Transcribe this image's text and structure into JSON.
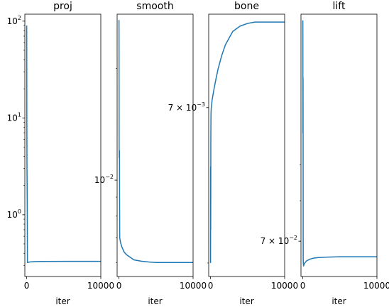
{
  "chart_data": [
    {
      "type": "line",
      "title": "proj",
      "xlabel": "iter",
      "yscale": "log",
      "xlim": [
        -250,
        10000
      ],
      "ylim": [
        0.23,
        118
      ],
      "xticks": [
        {
          "v": 0,
          "label": "0"
        },
        {
          "v": 10000,
          "label": "10000"
        }
      ],
      "yticks": [
        {
          "v": 1,
          "label": "10",
          "exp": "0"
        },
        {
          "v": 10,
          "label": "10",
          "exp": "1"
        },
        {
          "v": 100,
          "label": "10",
          "exp": "2"
        }
      ],
      "color": "#1f77b4",
      "series": [
        {
          "x": [
            0,
            5,
            10,
            20,
            40,
            60,
            80,
            100,
            200,
            400,
            1000,
            2000,
            5000,
            10000
          ],
          "y": [
            90,
            85,
            40,
            10,
            3,
            2.0,
            1.0,
            0.32,
            0.322,
            0.325,
            0.328,
            0.329,
            0.33,
            0.33
          ]
        }
      ]
    },
    {
      "type": "line",
      "title": "smooth",
      "xlabel": "iter",
      "yscale": "log",
      "xlim": [
        -250,
        10000
      ],
      "ylim": [
        0.0055,
        0.028
      ],
      "xticks": [
        {
          "v": 0,
          "label": "0"
        },
        {
          "v": 10000,
          "label": "10000"
        }
      ],
      "yticks": [
        {
          "v": 0.01,
          "label": "10",
          "exp": "−2"
        }
      ],
      "color": "#1f77b4",
      "series": [
        {
          "x": [
            0,
            5,
            10,
            20,
            30,
            40,
            60,
            80,
            100,
            150,
            200,
            400,
            700,
            1000,
            1500,
            2000,
            3000,
            4000,
            5000,
            7000,
            10000
          ],
          "y": [
            0.027,
            0.025,
            0.02,
            0.0125,
            0.0115,
            0.012,
            0.012,
            0.009,
            0.007,
            0.0069,
            0.0068,
            0.0066,
            0.0064,
            0.0063,
            0.0062,
            0.0061,
            0.00605,
            0.00602,
            0.006,
            0.006,
            0.006
          ]
        }
      ]
    },
    {
      "type": "line",
      "title": "bone",
      "xlabel": "iter",
      "yscale": "log",
      "xlim": [
        -250,
        10000
      ],
      "ylim": [
        0.00592,
        0.00768
      ],
      "xticks": [
        {
          "v": 0,
          "label": "0"
        },
        {
          "v": 10000,
          "label": "10000"
        }
      ],
      "yticks": [
        {
          "v": 0.007,
          "label": "7 × 10",
          "exp": "−3"
        }
      ],
      "color": "#1f77b4",
      "series": [
        {
          "x": [
            0,
            5,
            10,
            15,
            20,
            30,
            40,
            60,
            80,
            100,
            150,
            200,
            300,
            500,
            800,
            1000,
            1500,
            2000,
            3000,
            4000,
            5000,
            6000,
            8000,
            10000
          ],
          "y": [
            0.006,
            0.0065,
            0.0066,
            0.0066,
            0.0062,
            0.0064,
            0.0068,
            0.00695,
            0.00698,
            0.007,
            0.00702,
            0.00705,
            0.00708,
            0.00714,
            0.00722,
            0.00727,
            0.00737,
            0.00745,
            0.00755,
            0.00759,
            0.00761,
            0.00762,
            0.00762,
            0.00762
          ]
        }
      ]
    },
    {
      "type": "line",
      "title": "lift",
      "xlabel": "iter",
      "yscale": "log",
      "xlim": [
        -250,
        10000
      ],
      "ylim": [
        0.0623,
        0.148
      ],
      "xticks": [
        {
          "v": 0,
          "label": "0"
        },
        {
          "v": 10000,
          "label": "10000"
        }
      ],
      "yticks": [
        {
          "v": 0.07,
          "label": "7 × 10",
          "exp": "−2"
        }
      ],
      "color": "#1f77b4",
      "series": [
        {
          "x": [
            0,
            5,
            10,
            15,
            20,
            30,
            40,
            50,
            70,
            100,
            150,
            200,
            300,
            500,
            1000,
            1500,
            2000,
            3000,
            5000,
            7000,
            10000
          ],
          "y": [
            0.145,
            0.14,
            0.12,
            0.1,
            0.11,
            0.12,
            0.09,
            0.066,
            0.065,
            0.0645,
            0.0648,
            0.065,
            0.0652,
            0.0656,
            0.066,
            0.0662,
            0.0663,
            0.0664,
            0.0665,
            0.0665,
            0.0665
          ]
        }
      ]
    }
  ]
}
